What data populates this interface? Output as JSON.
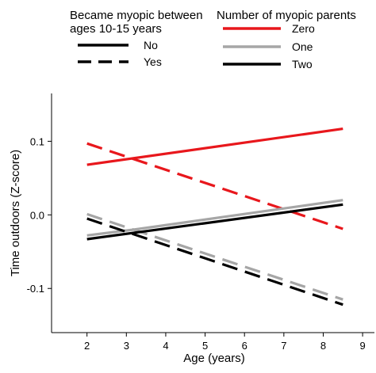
{
  "chart_data": {
    "type": "line",
    "xlabel": "Age (years)",
    "ylabel": "Time outdoors (Z-score)",
    "xlim": [
      1.1,
      9.3
    ],
    "ylim": [
      -0.16,
      0.165
    ],
    "xticks": [
      2,
      3,
      4,
      5,
      6,
      7,
      8,
      9
    ],
    "yticks": [
      0.1,
      0.0,
      -0.1
    ],
    "ytick_labels": [
      "0.1",
      "0.0",
      "-0.1"
    ],
    "grid": false,
    "legend_position": "top",
    "legends": {
      "linestyle": {
        "title": "Became myopic between ages 10-15 years",
        "title_lines": [
          "Became myopic between",
          "ages 10-15 years"
        ],
        "entries": [
          {
            "label": "No",
            "dash": "solid"
          },
          {
            "label": "Yes",
            "dash": "dashed"
          }
        ]
      },
      "color": {
        "title": "Number of myopic parents",
        "entries": [
          {
            "label": "Zero",
            "color": "#e8171c"
          },
          {
            "label": "One",
            "color": "#a6a6a6"
          },
          {
            "label": "Two",
            "color": "#000000"
          }
        ]
      }
    },
    "series": [
      {
        "parents": "Zero",
        "myopic": "No",
        "color": "#e8171c",
        "dash": "solid",
        "x": [
          2,
          8.5
        ],
        "y": [
          0.068,
          0.117
        ]
      },
      {
        "parents": "Zero",
        "myopic": "Yes",
        "color": "#e8171c",
        "dash": "dashed",
        "x": [
          2,
          8.5
        ],
        "y": [
          0.097,
          -0.019
        ]
      },
      {
        "parents": "One",
        "myopic": "No",
        "color": "#a6a6a6",
        "dash": "solid",
        "x": [
          2,
          3.2,
          8.5
        ],
        "y": [
          -0.028,
          -0.02,
          0.02
        ]
      },
      {
        "parents": "One",
        "myopic": "Yes",
        "color": "#a6a6a6",
        "dash": "dashed",
        "x": [
          2,
          8.5
        ],
        "y": [
          0.001,
          -0.115
        ]
      },
      {
        "parents": "Two",
        "myopic": "No",
        "color": "#000000",
        "dash": "solid",
        "x": [
          2,
          8.5
        ],
        "y": [
          -0.033,
          0.014
        ]
      },
      {
        "parents": "Two",
        "myopic": "Yes",
        "color": "#000000",
        "dash": "dashed",
        "x": [
          2,
          8.5
        ],
        "y": [
          -0.005,
          -0.122
        ]
      }
    ]
  }
}
